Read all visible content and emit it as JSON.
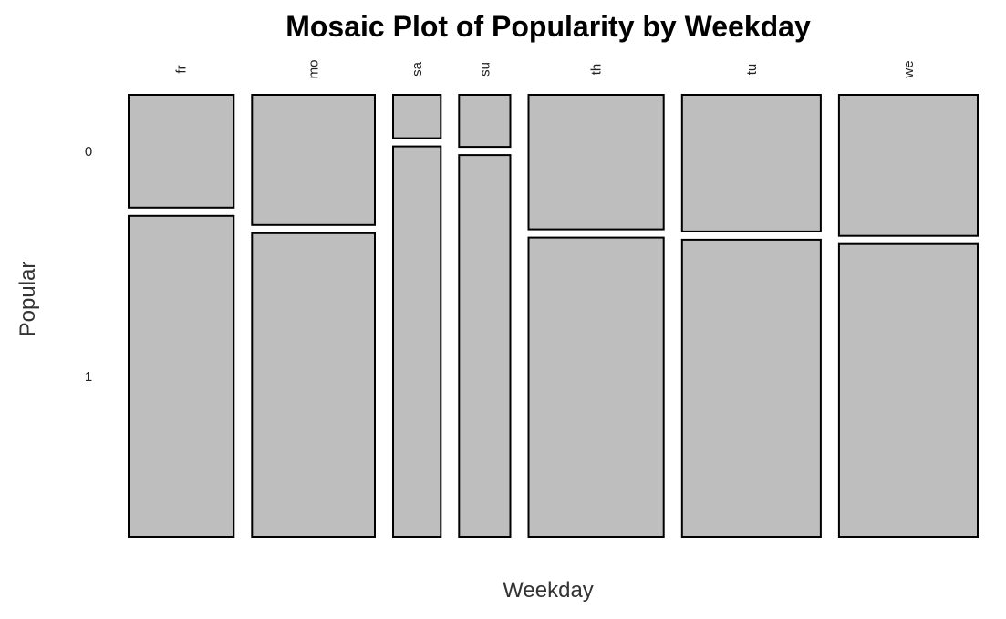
{
  "chart_data": {
    "type": "mosaic",
    "title": "Mosaic Plot of Popularity by Weekday",
    "xlabel": "Weekday",
    "ylabel": "Popular",
    "categories": [
      "fr",
      "mo",
      "sa",
      "su",
      "th",
      "tu",
      "we"
    ],
    "groups": [
      "0",
      "1"
    ],
    "column_proportions": [
      0.119,
      0.139,
      0.054,
      0.058,
      0.153,
      0.157,
      0.157
    ],
    "proportion_popular_0": [
      0.26,
      0.3,
      0.1,
      0.12,
      0.31,
      0.315,
      0.325
    ],
    "proportion_popular_1": [
      0.74,
      0.7,
      0.9,
      0.88,
      0.69,
      0.685,
      0.675
    ],
    "fill_color": "#bebebe",
    "stroke_color": "#000000",
    "grid": false,
    "legend": "none"
  }
}
